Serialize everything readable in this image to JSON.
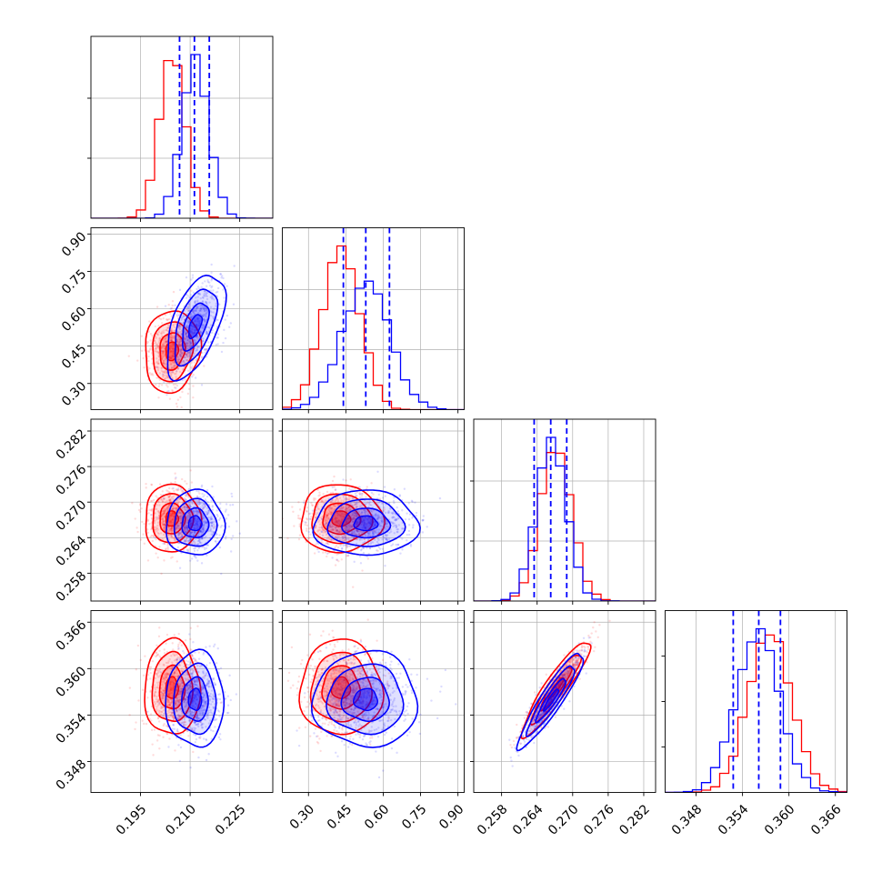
{
  "chart_data": {
    "type": "corner",
    "params": [
      {
        "key": "p0",
        "range": [
          0.18,
          0.235
        ],
        "ticks": [
          "0.195",
          "0.210",
          "0.225"
        ],
        "tick_values": [
          0.195,
          0.21,
          0.225
        ]
      },
      {
        "key": "p1",
        "range": [
          0.195,
          0.925
        ],
        "ticks": [
          "0.30",
          "0.45",
          "0.60",
          "0.75",
          "0.90"
        ],
        "tick_values": [
          0.3,
          0.45,
          0.6,
          0.75,
          0.9
        ]
      },
      {
        "key": "p2",
        "range": [
          0.2533,
          0.284
        ],
        "ticks": [
          "0.258",
          "0.264",
          "0.270",
          "0.276",
          "0.282"
        ],
        "tick_values": [
          0.258,
          0.264,
          0.27,
          0.276,
          0.282
        ]
      },
      {
        "key": "p3",
        "range": [
          0.344,
          0.3675
        ],
        "ticks": [
          "0.348",
          "0.354",
          "0.360",
          "0.366"
        ],
        "tick_values": [
          0.348,
          0.354,
          0.36,
          0.366
        ]
      }
    ],
    "series": [
      {
        "color": "#ff0000",
        "mean": [
          0.2045,
          0.43,
          0.2672,
          0.3575
        ],
        "std": [
          0.0038,
          0.075,
          0.0026,
          0.0028
        ],
        "corr_23": 0.92,
        "corr_01": 0.1,
        "corr_02": 0.0,
        "corr_03": 0.0,
        "corr_12": 0.0,
        "corr_13": 0.0
      },
      {
        "color": "#0000ff",
        "mean": [
          0.2115,
          0.53,
          0.2664,
          0.356
        ],
        "std": [
          0.004,
          0.095,
          0.0025,
          0.0028
        ],
        "corr_23": 0.92,
        "corr_01": 0.55,
        "corr_02": 0.0,
        "corr_03": 0.0,
        "corr_12": 0.0,
        "corr_13": 0.0
      }
    ],
    "quantile_lines": [
      {
        "color": "#0000ff",
        "values": [
          0.2068,
          0.2113,
          0.2158
        ]
      },
      {
        "color": "#0000ff",
        "values": [
          0.44,
          0.53,
          0.625
        ]
      },
      {
        "color": "#0000ff",
        "values": [
          0.2635,
          0.2663,
          0.269
        ]
      },
      {
        "color": "#0000ff",
        "values": [
          0.3528,
          0.3561,
          0.3589
        ]
      }
    ],
    "grid": true
  }
}
